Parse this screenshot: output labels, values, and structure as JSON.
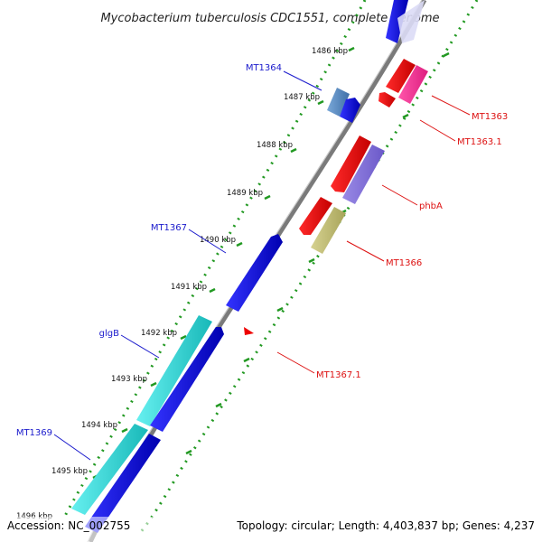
{
  "title": "Mycobacterium tuberculosis CDC1551, complete genome",
  "footer": {
    "accession": "Accession: NC_002755",
    "topology": "Topology: circular; Length: 4,403,837 bp; Genes: 4,237"
  },
  "colors": {
    "backbone": "#888888",
    "tick": "#229922",
    "forward_label": "#1a1acc",
    "reverse_label": "#dd1111"
  },
  "ticks": [
    "1486 kbp",
    "1487 kbp",
    "1488 kbp",
    "1489 kbp",
    "1490 kbp",
    "1491 kbp",
    "1492 kbp",
    "1493 kbp",
    "1494 kbp",
    "1495 kbp",
    "1496 kbp"
  ],
  "gene_labels": {
    "forward": [
      "MT1364",
      "MT1367",
      "glgB",
      "MT1369"
    ],
    "reverse": [
      "MT1363",
      "MT1363.1",
      "phbA",
      "MT1366",
      "MT1367.1"
    ]
  }
}
